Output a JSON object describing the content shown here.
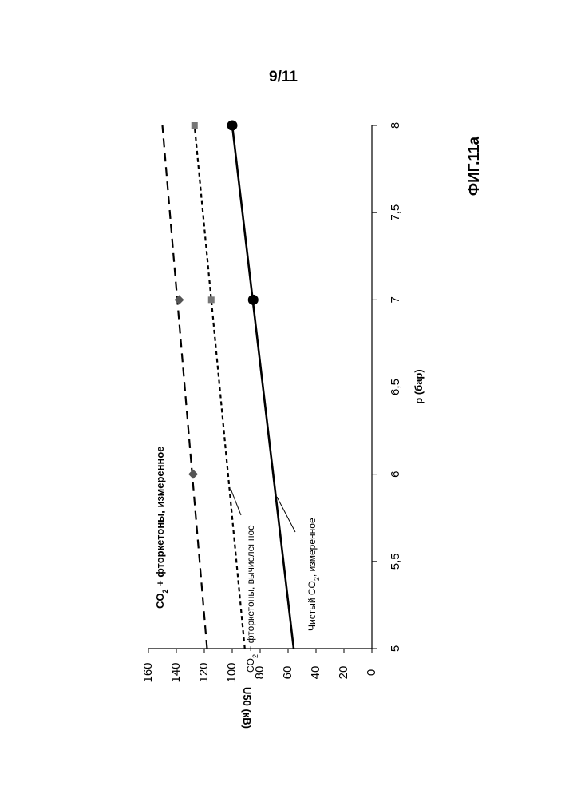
{
  "page_number": "9/11",
  "figure_label": "ФИГ.11а",
  "chart_data": {
    "type": "line",
    "orientation": "rotated-90",
    "xlabel": "p (бар)",
    "ylabel": "U50 (кВ)",
    "xlim": [
      5,
      8
    ],
    "ylim": [
      0,
      160
    ],
    "x_ticks": [
      "5",
      "5,5",
      "6",
      "6,5",
      "7",
      "7,5",
      "8"
    ],
    "y_ticks": [
      "0",
      "20",
      "40",
      "60",
      "80",
      "100",
      "120",
      "140",
      "160"
    ],
    "grid": false,
    "series": [
      {
        "name": "CO2 + фторкетоны, измеренное",
        "label_main": "CO",
        "label_sub": "2",
        "label_rest": " + фторкетоны, измеренное",
        "line_style": "long-dash",
        "marker": "diamond",
        "color": "#555555",
        "line": [
          [
            5,
            118
          ],
          [
            8,
            150
          ]
        ],
        "points": [
          [
            6,
            128
          ],
          [
            7,
            138
          ]
        ]
      },
      {
        "name": "CO2 + фторкетоны, вычисленное",
        "label_main": "CO",
        "label_sub": "2",
        "label_rest": " + фторкетоны, вычисленное",
        "line_style": "short-dash",
        "marker": "square",
        "color": "#777777",
        "line": [
          [
            5,
            91
          ],
          [
            8,
            127
          ]
        ],
        "points": [
          [
            7,
            115
          ],
          [
            8,
            127
          ]
        ]
      },
      {
        "name": "Чистый CO2, измеренное",
        "label_main": "Чистый CO",
        "label_sub": "2",
        "label_rest": ", измеренное",
        "line_style": "solid",
        "marker": "circle",
        "color": "#000000",
        "line": [
          [
            5,
            56
          ],
          [
            8,
            100
          ]
        ],
        "points": [
          [
            7,
            85
          ],
          [
            8,
            100
          ]
        ]
      }
    ]
  }
}
